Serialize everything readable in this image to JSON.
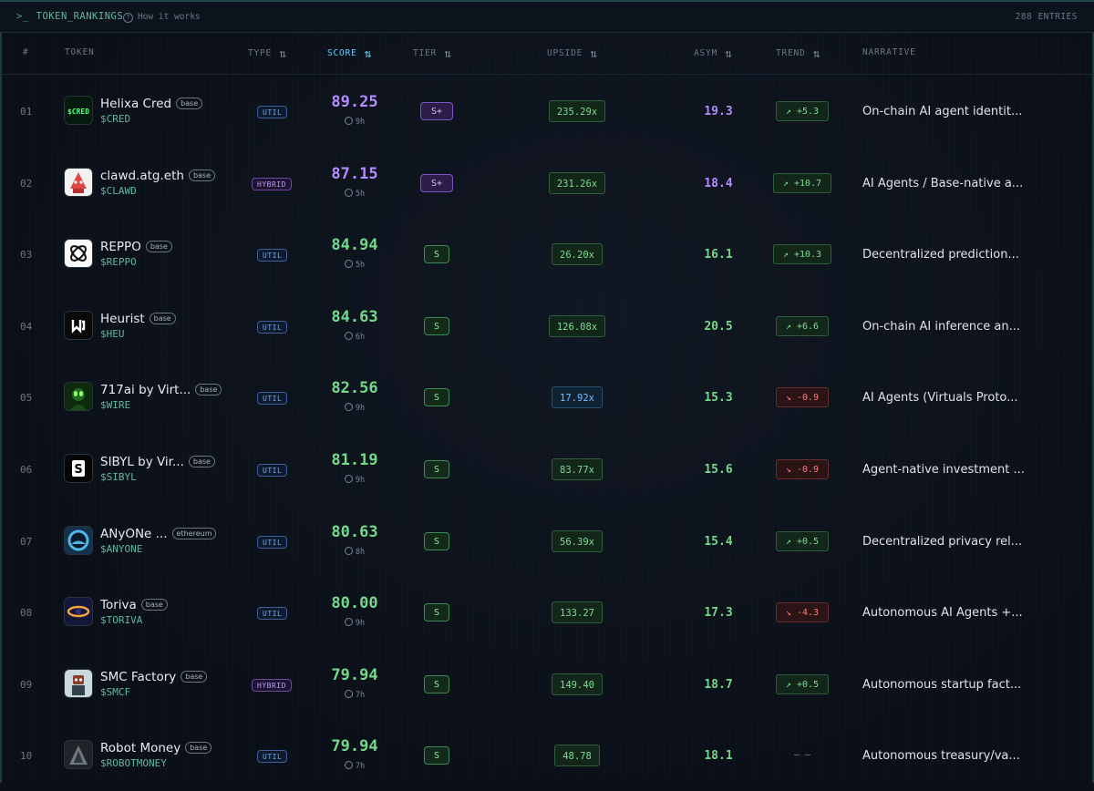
{
  "header": {
    "title": "TOKEN_RANKINGS",
    "prompt": ">_",
    "how_link": "How it works",
    "entries": "288 ENTRIES"
  },
  "columns": {
    "rank": "#",
    "token": "TOKEN",
    "type": "TYPE",
    "score": "SCORE",
    "tier": "TIER",
    "upside": "UPSIDE",
    "asym": "ASYM",
    "trend": "TREND",
    "narrative": "NARRATIVE"
  },
  "rows": [
    {
      "rank": "01",
      "name": "Helixa Cred",
      "chain": "base",
      "ticker": "$CRED",
      "type": "UTIL",
      "score": "89.25",
      "age": "9h",
      "tier": "S+",
      "upside": "235.29x",
      "asym": "19.3",
      "trend": "+5.3",
      "narrative": "On-chain AI agent identit...",
      "avatar": "cred-logo"
    },
    {
      "rank": "02",
      "name": "clawd.atg.eth",
      "chain": "base",
      "ticker": "$CLAWD",
      "type": "HYBRID",
      "score": "87.15",
      "age": "5h",
      "tier": "S+",
      "upside": "231.26x",
      "asym": "18.4",
      "trend": "+10.7",
      "narrative": "AI Agents / Base-native a...",
      "avatar": "clawd-logo"
    },
    {
      "rank": "03",
      "name": "REPPO",
      "chain": "base",
      "ticker": "$REPPO",
      "type": "UTIL",
      "score": "84.94",
      "age": "5h",
      "tier": "S",
      "upside": "26.20x",
      "asym": "16.1",
      "trend": "+10.3",
      "narrative": "Decentralized prediction...",
      "avatar": "reppo-logo"
    },
    {
      "rank": "04",
      "name": "Heurist",
      "chain": "base",
      "ticker": "$HEU",
      "type": "UTIL",
      "score": "84.63",
      "age": "6h",
      "tier": "S",
      "upside": "126.08x",
      "asym": "20.5",
      "trend": "+6.6",
      "narrative": "On-chain AI inference an...",
      "avatar": "heurist-logo"
    },
    {
      "rank": "05",
      "name": "717ai by Virt...",
      "chain": "base",
      "ticker": "$WIRE",
      "type": "UTIL",
      "score": "82.56",
      "age": "9h",
      "tier": "S",
      "upside": "17.92x",
      "asym": "15.3",
      "trend": "-0.9",
      "narrative": "AI Agents (Virtuals Proto...",
      "avatar": "wire-logo"
    },
    {
      "rank": "06",
      "name": "SIBYL by Vir...",
      "chain": "base",
      "ticker": "$SIBYL",
      "type": "UTIL",
      "score": "81.19",
      "age": "9h",
      "tier": "S",
      "upside": "83.77x",
      "asym": "15.6",
      "trend": "-0.9",
      "narrative": "Agent-native investment ...",
      "avatar": "sibyl-logo"
    },
    {
      "rank": "07",
      "name": "ANyONe ...",
      "chain": "ethereum",
      "ticker": "$ANYONE",
      "type": "UTIL",
      "score": "80.63",
      "age": "8h",
      "tier": "S",
      "upside": "56.39x",
      "asym": "15.4",
      "trend": "+0.5",
      "narrative": "Decentralized privacy rel...",
      "avatar": "anyone-logo"
    },
    {
      "rank": "08",
      "name": "Toriva",
      "chain": "base",
      "ticker": "$TORIVA",
      "type": "UTIL",
      "score": "80.00",
      "age": "9h",
      "tier": "S",
      "upside": "133.27",
      "asym": "17.3",
      "trend": "-4.3",
      "narrative": "Autonomous AI Agents +...",
      "avatar": "toriva-logo"
    },
    {
      "rank": "09",
      "name": "SMC Factory",
      "chain": "base",
      "ticker": "$SMCF",
      "type": "HYBRID",
      "score": "79.94",
      "age": "7h",
      "tier": "S",
      "upside": "149.40",
      "asym": "18.7",
      "trend": "+0.5",
      "narrative": "Autonomous startup fact...",
      "avatar": "smcf-logo"
    },
    {
      "rank": "10",
      "name": "Robot Money",
      "chain": "base",
      "ticker": "$ROBOTMONEY",
      "type": "UTIL",
      "score": "79.94",
      "age": "7h",
      "tier": "S",
      "upside": "48.78",
      "asym": "18.1",
      "trend": "– –",
      "narrative": "Autonomous treasury/va...",
      "avatar": "robotmoney-logo"
    }
  ],
  "colors": {
    "accent": "#5fd3ff",
    "purple": "#b58cff",
    "green": "#73d98b",
    "red": "#ff7a7a",
    "teal": "#5fb8a6"
  }
}
